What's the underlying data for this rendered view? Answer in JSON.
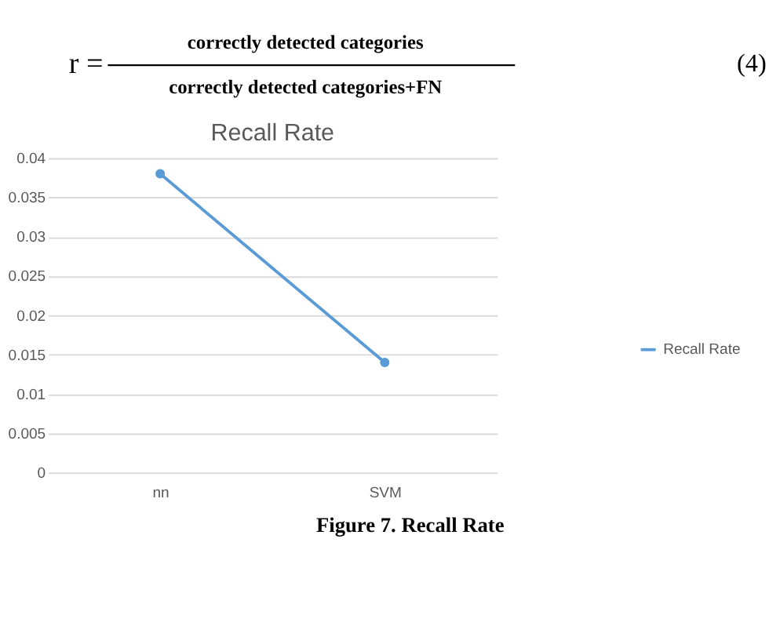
{
  "chart_data": {
    "type": "line",
    "title": "Recall Rate",
    "categories": [
      "nn",
      "SVM"
    ],
    "series": [
      {
        "name": "Recall Rate",
        "color": "#5b9bd5",
        "values": [
          0.038,
          0.014
        ]
      }
    ],
    "ylim": [
      0,
      0.04
    ],
    "yticks": [
      0,
      0.005,
      0.01,
      0.015,
      0.02,
      0.025,
      0.03,
      0.035,
      0.04
    ],
    "grid": "y",
    "legend": "right",
    "marker": "circle",
    "line_style": "solid",
    "annotations": [
      "r =",
      "correctly detected categories",
      "correctly detected categories+FN",
      "(4)",
      "Figure 7. Recall Rate"
    ]
  }
}
